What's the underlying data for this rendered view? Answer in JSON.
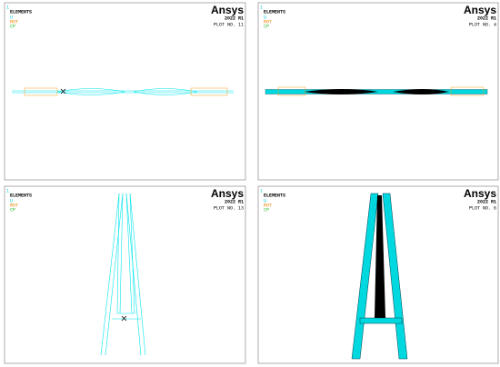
{
  "panels": [
    {
      "number": "1",
      "title": "ELEMENTS",
      "legend": [
        "U",
        "ROT",
        "CP"
      ],
      "brand": "Ansys",
      "version": "2022 R1",
      "plot": "PLOT NO.  11"
    },
    {
      "number": "1",
      "title": "ELEMENTS",
      "legend": [
        "U",
        "ROT",
        "CP"
      ],
      "brand": "Ansys",
      "version": "2022 R1",
      "plot": "PLOT NO.  4"
    },
    {
      "number": "1",
      "title": "ELEMENTS",
      "legend": [
        "U",
        "ROT",
        "CP"
      ],
      "brand": "Ansys",
      "version": "2022 R1",
      "plot": "PLOT NO.  13"
    },
    {
      "number": "1",
      "title": "ELEMENTS",
      "legend": [
        "U",
        "ROT",
        "CP"
      ],
      "brand": "Ansys",
      "version": "2022 R1",
      "plot": "PLOT NO.  6"
    }
  ]
}
